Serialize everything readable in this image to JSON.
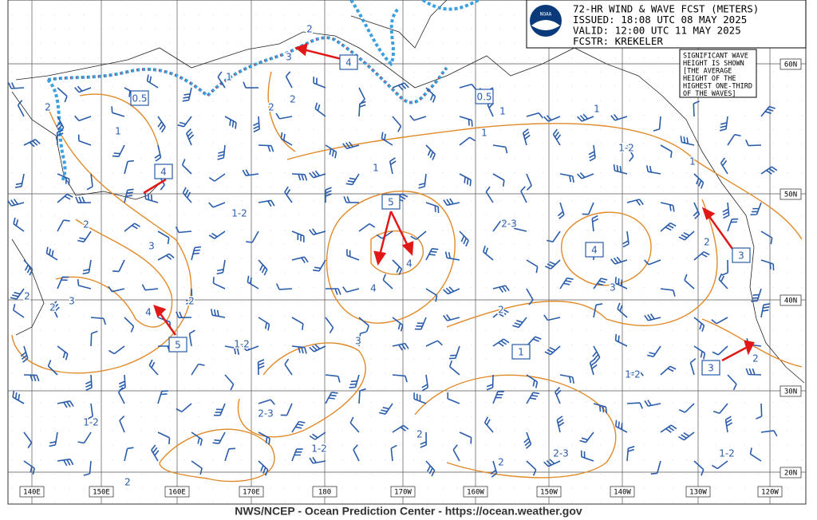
{
  "header": {
    "logo": "NOAA",
    "lines": [
      "72-HR WIND & WAVE FCST (METERS)",
      "ISSUED: 18:08 UTC 08 MAY 2025",
      "VALID: 12:00 UTC 11 MAY 2025",
      "FCSTR: KREKELER"
    ]
  },
  "note": [
    "SIGNIFICANT WAVE",
    "HEIGHT IS SHOWN",
    "[THE AVERAGE",
    "HEIGHT OF THE",
    "HIGHEST ONE-THIRD",
    "OF THE WAVES]"
  ],
  "longitudes": [
    "140E",
    "150E",
    "160E",
    "170E",
    "180",
    "170W",
    "160W",
    "150W",
    "140W",
    "130W",
    "120W"
  ],
  "latitudes": [
    "60N",
    "50N",
    "40N",
    "30N",
    "20N"
  ],
  "boxed_labels": [
    "0.5",
    "4",
    "0.5",
    "4",
    "5",
    "4",
    "3",
    "5",
    "1",
    "3"
  ],
  "contour_labels": [
    "2",
    "1",
    "1",
    "2",
    "2",
    "3",
    "2",
    "1",
    "1",
    "1",
    "1-2",
    "1",
    "1",
    "2",
    "3",
    "1-2",
    "2-3",
    "2",
    "4",
    "4",
    "3",
    "2",
    "2",
    "3",
    "4",
    "2",
    "2",
    "1-2",
    "3",
    "1-2",
    "2",
    "2-3",
    "1-2",
    "2",
    "1-2",
    "2-3",
    "1-2",
    "2",
    "2"
  ],
  "footer": "NWS/NCEP - Ocean Prediction Center - https://ocean.weather.gov"
}
